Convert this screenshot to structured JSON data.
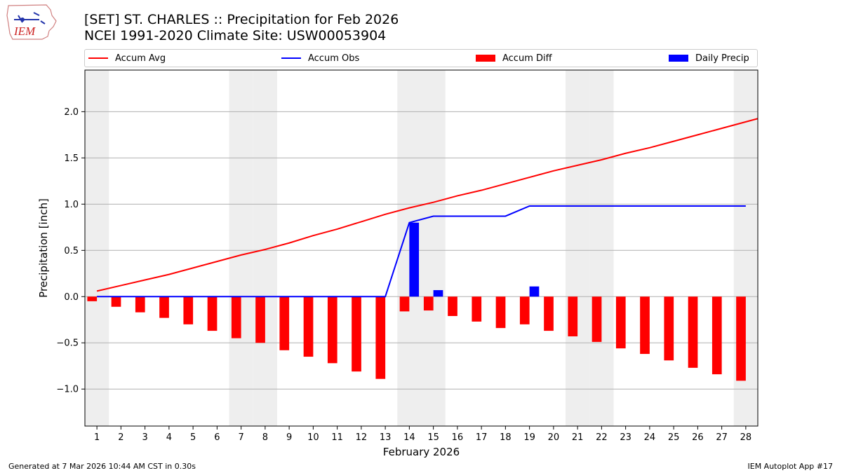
{
  "logo": {
    "text": "IEM"
  },
  "header": {
    "title_line1": "[SET] ST. CHARLES :: Precipitation for Feb 2026",
    "title_line2": "NCEI 1991-2020 Climate Site: USW00053904"
  },
  "legend": {
    "accum_avg": "Accum Avg",
    "accum_obs": "Accum Obs",
    "accum_diff": "Accum Diff",
    "daily_precip": "Daily Precip"
  },
  "colors": {
    "avg": "#ff0000",
    "obs": "#0000ff",
    "diff": "#ff0000",
    "daily": "#0000ff",
    "weekend": "#eeeeee",
    "grid": "#b0b0b0"
  },
  "chart_data": {
    "type": "bar",
    "xlabel": "February 2026",
    "ylabel": "Precipitation [inch]",
    "ylim": [
      -1.4,
      2.45
    ],
    "yticks": [
      -1.0,
      -0.5,
      0.0,
      0.5,
      1.0,
      1.5,
      2.0
    ],
    "ytick_labels": [
      "−1.0",
      "−0.5",
      "0.0",
      "0.5",
      "1.0",
      "1.5",
      "2.0"
    ],
    "categories": [
      "1",
      "2",
      "3",
      "4",
      "5",
      "6",
      "7",
      "8",
      "9",
      "10",
      "11",
      "12",
      "13",
      "14",
      "15",
      "16",
      "17",
      "18",
      "19",
      "20",
      "21",
      "22",
      "23",
      "24",
      "25",
      "26",
      "27",
      "28"
    ],
    "shaded_days": [
      1,
      7,
      8,
      14,
      15,
      21,
      22,
      28
    ],
    "series": [
      {
        "name": "Accum Avg",
        "kind": "line",
        "values": [
          0.06,
          0.12,
          0.18,
          0.24,
          0.31,
          0.38,
          0.45,
          0.51,
          0.58,
          0.66,
          0.73,
          0.81,
          0.89,
          0.96,
          1.02,
          1.09,
          1.15,
          1.22,
          1.29,
          1.36,
          1.42,
          1.48,
          1.55,
          1.61,
          1.68,
          1.75,
          1.82,
          1.89
        ]
      },
      {
        "name": "Accum Obs",
        "kind": "line",
        "values": [
          0,
          0,
          0,
          0,
          0,
          0,
          0,
          0,
          0,
          0,
          0,
          0,
          0,
          0.8,
          0.87,
          0.87,
          0.87,
          0.87,
          0.98,
          0.98,
          0.98,
          0.98,
          0.98,
          0.98,
          0.98,
          0.98,
          0.98,
          0.98
        ]
      },
      {
        "name": "Accum Diff",
        "kind": "bar",
        "values": [
          -0.05,
          -0.11,
          -0.17,
          -0.23,
          -0.3,
          -0.37,
          -0.45,
          -0.5,
          -0.58,
          -0.65,
          -0.72,
          -0.81,
          -0.89,
          -0.16,
          -0.15,
          -0.21,
          -0.27,
          -0.34,
          -0.3,
          -0.37,
          -0.43,
          -0.49,
          -0.56,
          -0.62,
          -0.69,
          -0.77,
          -0.84,
          -0.91
        ]
      },
      {
        "name": "Daily Precip",
        "kind": "bar",
        "values": [
          0,
          0,
          0,
          0,
          0,
          0,
          0,
          0,
          0,
          0,
          0,
          0,
          0,
          0.8,
          0.07,
          0,
          0,
          0,
          0.11,
          0,
          0,
          0,
          0,
          0,
          0,
          0,
          0,
          0
        ]
      }
    ]
  },
  "footer": {
    "generated": "Generated at 7 Mar 2026 10:44 AM CST in 0.30s",
    "app": "IEM Autoplot App #17"
  }
}
